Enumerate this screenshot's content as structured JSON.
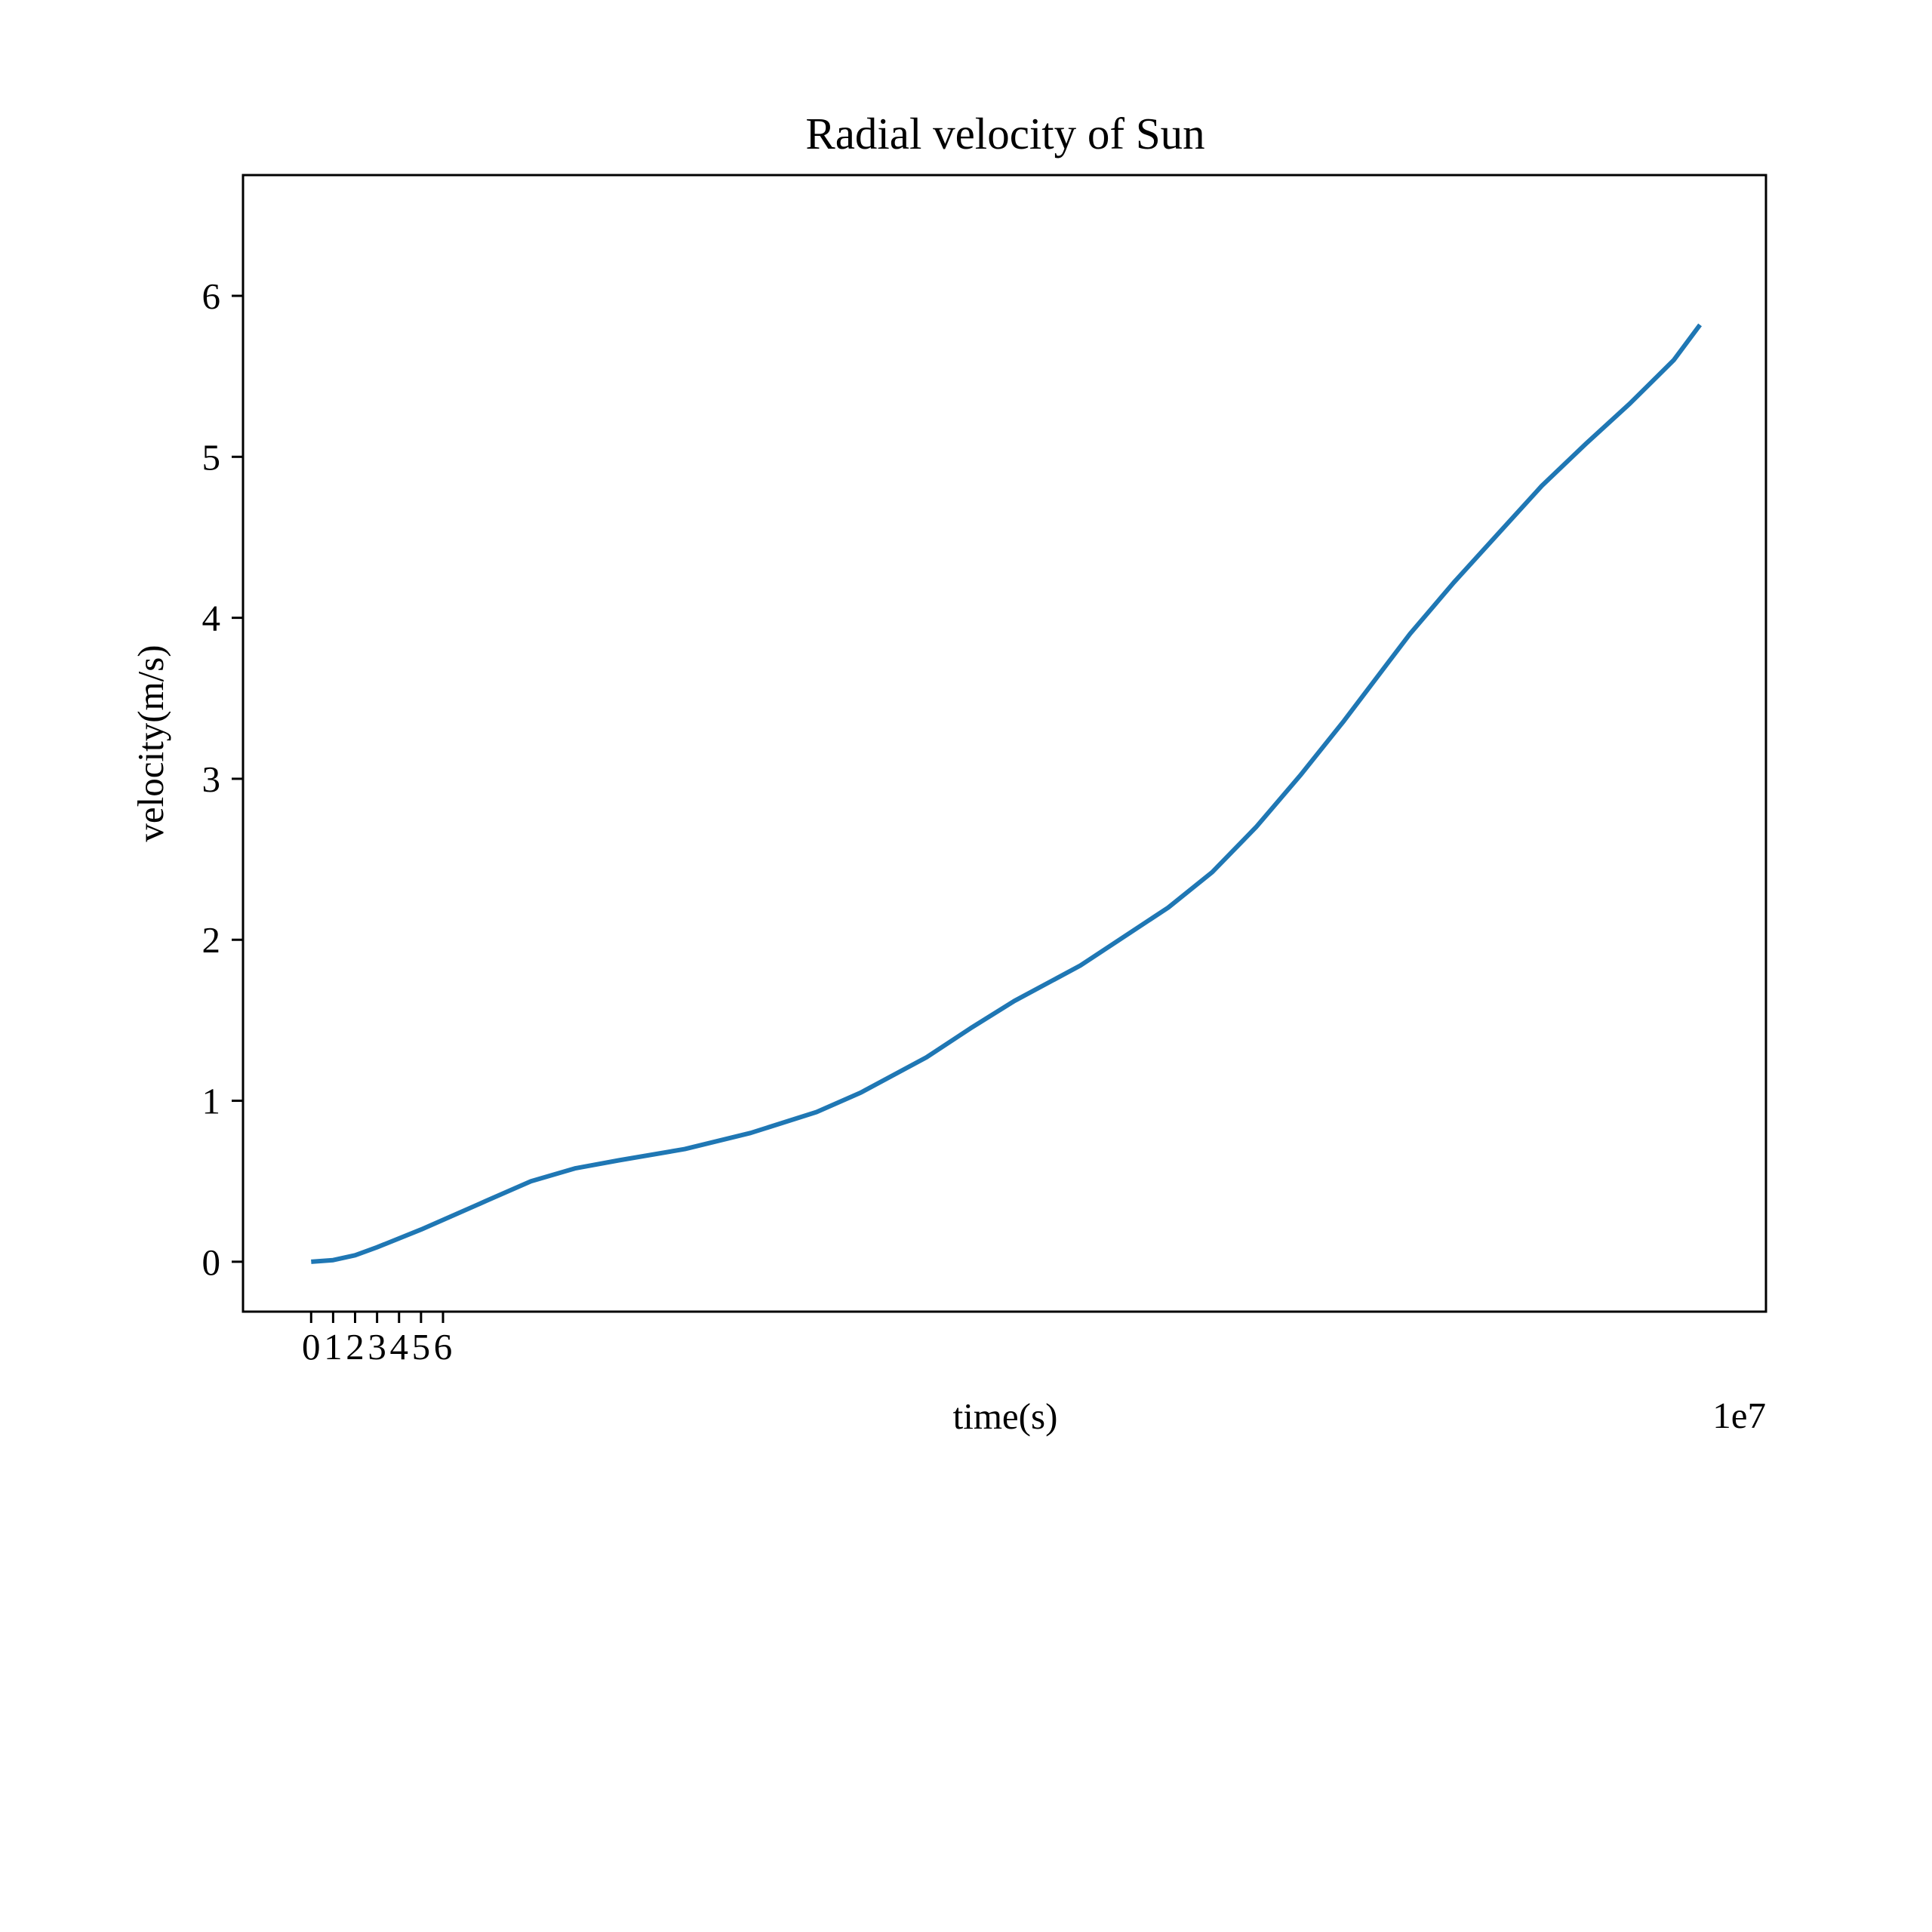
{
  "chart_data": {
    "type": "line",
    "title": "Radial velocity of Sun",
    "xlabel": "time(s)",
    "ylabel": "velocity(m/s)",
    "x_offset_label": "1e7",
    "xlim": [
      -3.1,
      66.2
    ],
    "ylim": [
      -0.31,
      6.75
    ],
    "x_scale_factor": 10000000,
    "xticks": [
      0,
      1,
      2,
      3,
      4,
      5,
      6
    ],
    "xtick_labels": [
      "0",
      "1",
      "2",
      "3",
      "4",
      "5",
      "6"
    ],
    "yticks": [
      0,
      1,
      2,
      3,
      4,
      5,
      6
    ],
    "ytick_labels": [
      "0",
      "1",
      "2",
      "3",
      "4",
      "5",
      "6"
    ],
    "grid": false,
    "legend": "none",
    "series": [
      {
        "color": "#1f77b4",
        "x": [
          0,
          1,
          2,
          3,
          5,
          8,
          10,
          12,
          14,
          17,
          20,
          23,
          25,
          28,
          30,
          32,
          35,
          37,
          39,
          41,
          43,
          45,
          47,
          49,
          50,
          52,
          54,
          56,
          58,
          60,
          62,
          63.2
        ],
        "y": [
          0,
          0.01,
          0.04,
          0.09,
          0.2,
          0.38,
          0.5,
          0.58,
          0.63,
          0.7,
          0.8,
          0.93,
          1.05,
          1.27,
          1.45,
          1.62,
          1.84,
          2.02,
          2.2,
          2.42,
          2.7,
          3.02,
          3.36,
          3.72,
          3.9,
          4.22,
          4.52,
          4.82,
          5.08,
          5.33,
          5.6,
          5.82
        ]
      }
    ]
  }
}
